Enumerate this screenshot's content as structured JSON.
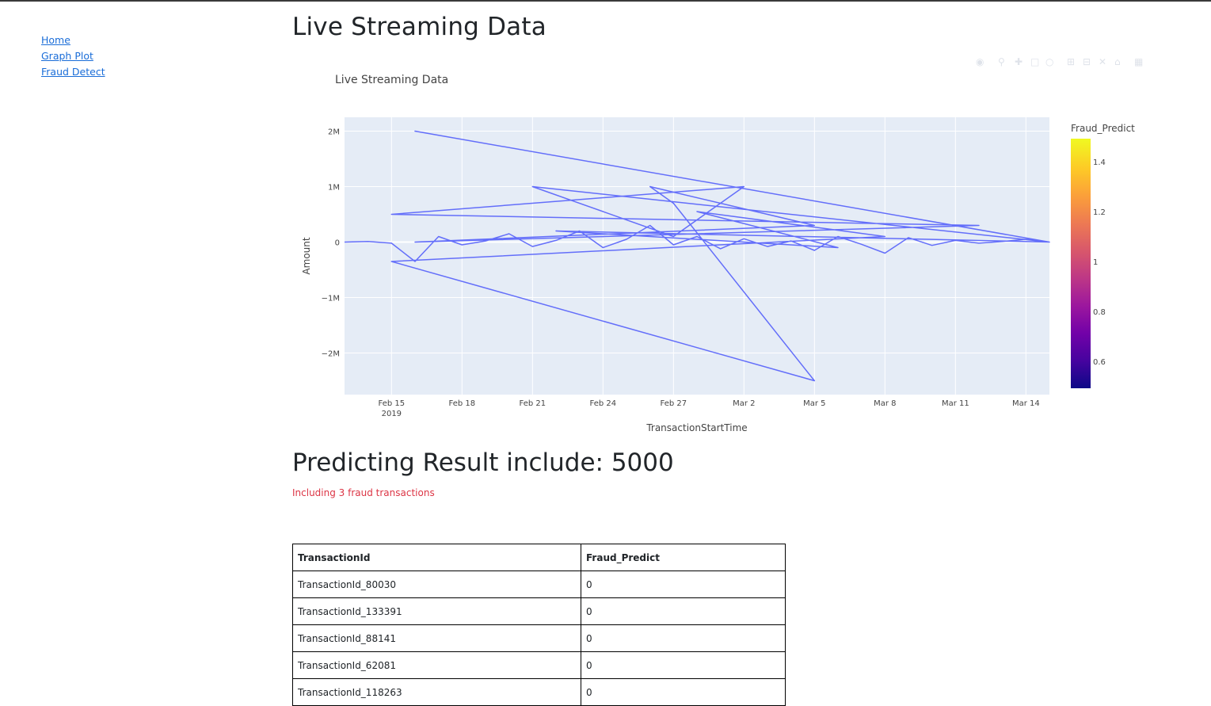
{
  "nav": {
    "items": [
      "Home",
      "Graph Plot",
      "Fraud Detect"
    ]
  },
  "page_title": "Live Streaming Data",
  "modebar": {
    "icons": [
      "camera-icon",
      "zoom-icon",
      "pan-icon",
      "box-select-icon",
      "lasso-select-icon",
      "zoom-in-icon",
      "zoom-out-icon",
      "autoscale-icon",
      "reset-axes-icon",
      "plotly-logo-icon"
    ]
  },
  "chart_data": {
    "type": "line",
    "title": "Live Streaming Data",
    "xlabel": "TransactionStartTime",
    "ylabel": "Amount",
    "x_ticks": [
      "Feb 15\n2019",
      "Feb 18",
      "Feb 21",
      "Feb 24",
      "Feb 27",
      "Mar 2",
      "Mar 5",
      "Mar 8",
      "Mar 11",
      "Mar 14"
    ],
    "y_ticks": [
      "2M",
      "1M",
      "0",
      "−1M",
      "−2M"
    ],
    "xlim": [
      "2019-02-13",
      "2019-03-15"
    ],
    "ylim": [
      -2750000,
      2250000
    ],
    "grid": true,
    "line_color": "#636efa",
    "background": "#e5ecf6",
    "series": [
      {
        "x": [
          "2019-02-13",
          "2019-02-14",
          "2019-02-15",
          "2019-02-16",
          "2019-02-17",
          "2019-02-18",
          "2019-02-19",
          "2019-02-20",
          "2019-02-21",
          "2019-02-22",
          "2019-02-23",
          "2019-02-24",
          "2019-02-25",
          "2019-02-26",
          "2019-02-27",
          "2019-02-28",
          "2019-03-01",
          "2019-03-02",
          "2019-03-03",
          "2019-03-04",
          "2019-03-05",
          "2019-03-06",
          "2019-03-07",
          "2019-03-08",
          "2019-03-09",
          "2019-03-10",
          "2019-03-11",
          "2019-03-12",
          "2019-03-13",
          "2019-03-14",
          "2019-03-15",
          "2019-02-16",
          "2019-03-15",
          "2019-02-21",
          "2019-02-27",
          "2019-03-02",
          "2019-02-15",
          "2019-03-12",
          "2019-02-16",
          "2019-03-05",
          "2019-02-26",
          "2019-02-27",
          "2019-03-05",
          "2019-02-15",
          "2019-03-08",
          "2019-02-28",
          "2019-03-06",
          "2019-02-22",
          "2019-03-15"
        ],
        "y": [
          0,
          10000,
          -20000,
          -350000,
          100000,
          -50000,
          20000,
          150000,
          -80000,
          30000,
          200000,
          -100000,
          50000,
          300000,
          -50000,
          100000,
          -120000,
          60000,
          -80000,
          20000,
          -150000,
          100000,
          -40000,
          -200000,
          80000,
          -60000,
          30000,
          -20000,
          10000,
          50000,
          0,
          2000000,
          0,
          1000000,
          100000,
          1000000,
          500000,
          300000,
          0,
          300000,
          1000000,
          700000,
          -2500000,
          -350000,
          100000,
          550000,
          -100000,
          200000,
          0
        ]
      }
    ]
  },
  "colorbar": {
    "title": "Fraud_Predict",
    "ticks": [
      "1.4",
      "1.2",
      "1",
      "0.8",
      "0.6"
    ],
    "range": [
      0.5,
      1.5
    ]
  },
  "result": {
    "title": "Predicting Result include: 5000",
    "fraud_note": "Including 3 fraud transactions"
  },
  "table": {
    "headers": [
      "TransactionId",
      "Fraud_Predict"
    ],
    "rows": [
      [
        "TransactionId_80030",
        "0"
      ],
      [
        "TransactionId_133391",
        "0"
      ],
      [
        "TransactionId_88141",
        "0"
      ],
      [
        "TransactionId_62081",
        "0"
      ],
      [
        "TransactionId_118263",
        "0"
      ]
    ]
  }
}
